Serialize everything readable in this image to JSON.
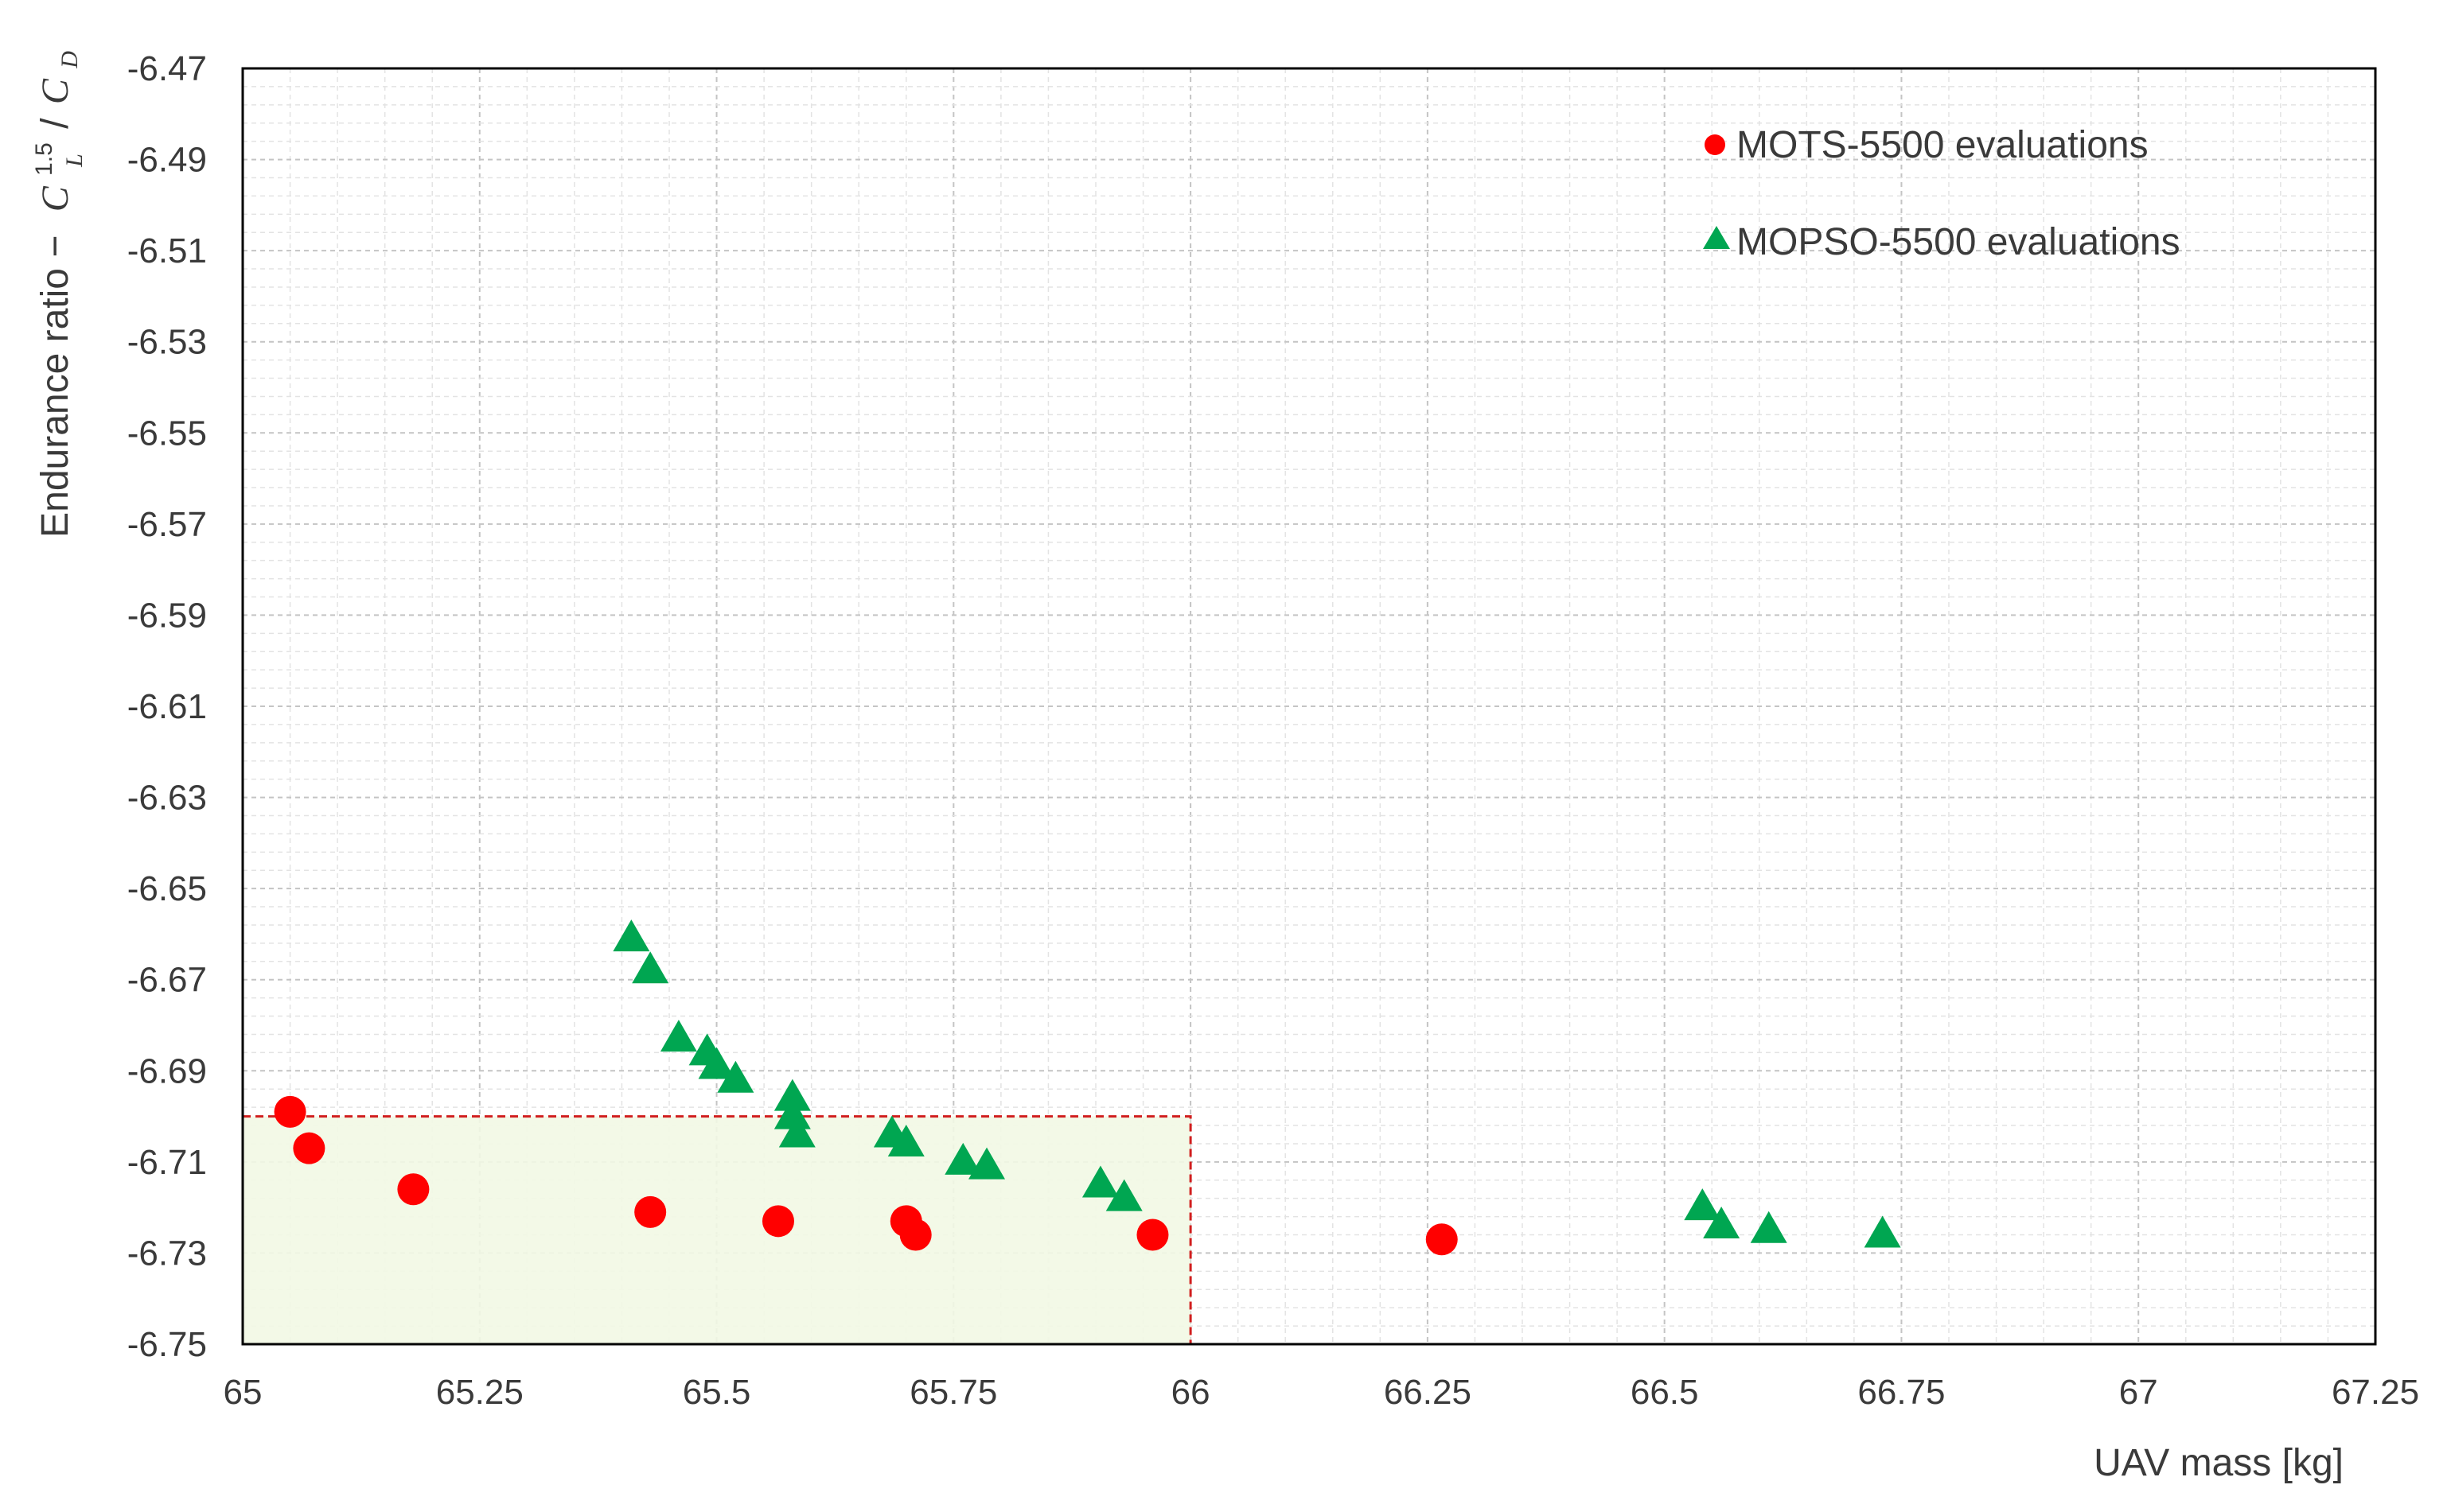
{
  "chart_data": {
    "type": "scatter",
    "xlabel": "UAV mass [kg]",
    "ylabel": {
      "prefix": "Endurance ratio  −",
      "cl": "C",
      "cl_sub": "L",
      "cl_sup": "1.5",
      "slash": "/",
      "cd": "C",
      "cd_sub": "D"
    },
    "xlim": [
      65,
      67.25
    ],
    "ylim": [
      -6.75,
      -6.47
    ],
    "xticks": [
      "65",
      "65.25",
      "65.5",
      "65.75",
      "66",
      "66.25",
      "66.5",
      "66.75",
      "67",
      "67.25"
    ],
    "yticks": [
      "-6.47",
      "-6.49",
      "-6.51",
      "-6.53",
      "-6.55",
      "-6.57",
      "-6.59",
      "-6.61",
      "-6.63",
      "-6.65",
      "-6.67",
      "-6.69",
      "-6.71",
      "-6.73",
      "-6.75"
    ],
    "grid": true,
    "legend_position": "top-right",
    "region": {
      "x": [
        65,
        66
      ],
      "y": [
        -6.75,
        -6.7
      ],
      "fill": "#f2f8e4",
      "stroke": "#d11f1f"
    },
    "series": [
      {
        "name": "MOTS-5500 evaluations",
        "marker": "circle",
        "color": "#ff0000",
        "points": [
          [
            65.05,
            -6.699
          ],
          [
            65.07,
            -6.707
          ],
          [
            65.18,
            -6.716
          ],
          [
            65.43,
            -6.721
          ],
          [
            65.565,
            -6.723
          ],
          [
            65.7,
            -6.723
          ],
          [
            65.71,
            -6.726
          ],
          [
            65.96,
            -6.726
          ],
          [
            66.265,
            -6.727
          ]
        ]
      },
      {
        "name": "MOPSO-5500 evaluations",
        "marker": "triangle",
        "color": "#00a651",
        "points": [
          [
            65.41,
            -6.661
          ],
          [
            65.43,
            -6.668
          ],
          [
            65.46,
            -6.683
          ],
          [
            65.49,
            -6.686
          ],
          [
            65.5,
            -6.689
          ],
          [
            65.52,
            -6.692
          ],
          [
            65.58,
            -6.696
          ],
          [
            65.58,
            -6.7
          ],
          [
            65.585,
            -6.704
          ],
          [
            65.685,
            -6.704
          ],
          [
            65.7,
            -6.706
          ],
          [
            65.76,
            -6.71
          ],
          [
            65.785,
            -6.711
          ],
          [
            65.905,
            -6.715
          ],
          [
            65.93,
            -6.718
          ],
          [
            66.54,
            -6.72
          ],
          [
            66.56,
            -6.724
          ],
          [
            66.61,
            -6.725
          ],
          [
            66.73,
            -6.726
          ]
        ]
      }
    ]
  }
}
